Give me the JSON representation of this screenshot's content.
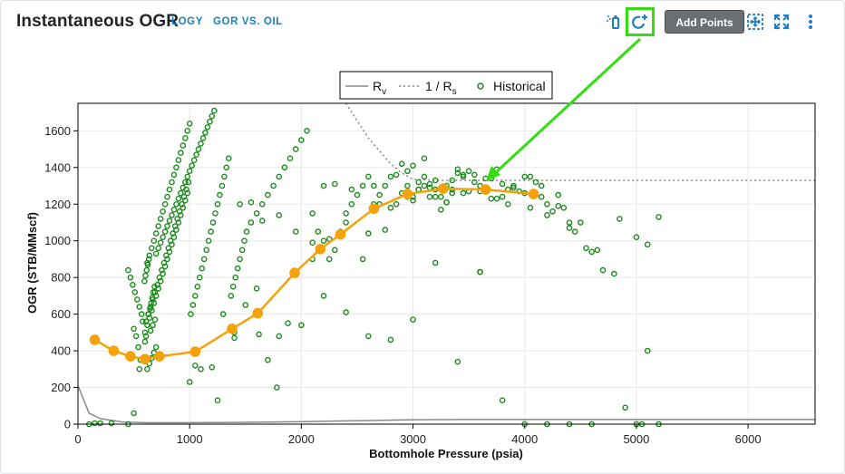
{
  "header": {
    "title": "Instantaneous OGR",
    "chip_logy": "LOGY",
    "chip_gor": "GOR VS. OIL",
    "tooltip": "Add Points",
    "toolbar_icons": [
      "flask-icon",
      "add-refresh-icon",
      "columns-icon",
      "move-icon",
      "expand-icon",
      "more-vert-icon"
    ]
  },
  "colors": {
    "accent": "#1f7fc1",
    "highlight": "#33dd11",
    "historical": "#1a8a1a",
    "fitted": "#f5a20a",
    "rv_line": "#888888"
  },
  "chart_data": {
    "type": "scatter",
    "xlabel": "Bottomhole Pressure (psia)",
    "ylabel": "OGR (STB/MMscf)",
    "xlim": [
      0,
      6600
    ],
    "ylim": [
      0,
      1750
    ],
    "xticks": [
      0,
      1000,
      2000,
      3000,
      4000,
      5000,
      6000
    ],
    "yticks": [
      0,
      200,
      400,
      600,
      800,
      1000,
      1200,
      1400,
      1600
    ],
    "grid": true,
    "legend_position": "top-center",
    "legend": {
      "rv": {
        "base": "R",
        "sub": "v"
      },
      "rs_inv": {
        "base": "1 / R",
        "sub": "s"
      },
      "historical": "Historical"
    },
    "rv_curve": {
      "x": [
        0,
        100,
        200,
        400,
        600,
        1000,
        1500,
        2000,
        2500,
        3000,
        3500,
        4000,
        5000,
        6000,
        6600
      ],
      "y": [
        210,
        60,
        30,
        12,
        8,
        8,
        10,
        14,
        19,
        24,
        25,
        25,
        25,
        25,
        25
      ]
    },
    "inv_rs_curve": {
      "x": [
        2400,
        2600,
        2800,
        2900,
        3000,
        3200,
        3600,
        4500,
        5500,
        6600
      ],
      "y": [
        1750,
        1560,
        1420,
        1370,
        1335,
        1330,
        1330,
        1330,
        1330,
        1330
      ]
    },
    "fitted_series": {
      "x": [
        150,
        320,
        470,
        600,
        730,
        1050,
        1380,
        1610,
        1940,
        2170,
        2350,
        2650,
        2950,
        3270,
        3650,
        4080
      ],
      "y": [
        460,
        400,
        370,
        355,
        370,
        395,
        520,
        605,
        825,
        955,
        1035,
        1175,
        1255,
        1285,
        1280,
        1255
      ]
    },
    "historical": {
      "x": [
        620,
        640,
        660,
        680,
        700,
        600,
        610,
        650,
        670,
        690,
        630,
        645,
        655,
        665,
        675,
        685,
        595,
        605,
        615,
        625,
        635,
        700,
        720,
        740,
        760,
        780,
        800,
        820,
        840,
        860,
        880,
        900,
        920,
        940,
        960,
        980,
        1000,
        1020,
        1040,
        1060,
        1080,
        1100,
        1120,
        1140,
        1160,
        1180,
        1200,
        1220,
        560,
        540,
        520,
        500,
        580,
        570,
        550,
        530,
        510,
        490,
        470,
        450,
        620,
        640,
        660,
        680,
        700,
        720,
        740,
        760,
        780,
        800,
        820,
        840,
        860,
        880,
        900,
        920,
        940,
        960,
        980,
        1000,
        600,
        620,
        640,
        660,
        680,
        700,
        720,
        740,
        760,
        780,
        800,
        820,
        840,
        860,
        880,
        900,
        920,
        940,
        960,
        980,
        610,
        630,
        650,
        670,
        690,
        710,
        730,
        750,
        770,
        790,
        810,
        830,
        850,
        870,
        890,
        910,
        930,
        950,
        970,
        990,
        1010,
        1030,
        1050,
        1070,
        1090,
        1110,
        1130,
        1150,
        1170,
        1190,
        1210,
        1230,
        1250,
        1270,
        1290,
        1310,
        1330,
        1350,
        1370,
        1390,
        1410,
        1430,
        1450,
        1470,
        1490,
        1510,
        1550,
        1600,
        1650,
        1700,
        1750,
        1800,
        1850,
        1900,
        1950,
        2000,
        2050,
        2100,
        2150,
        2200,
        2250,
        2300,
        2350,
        2400,
        2450,
        2500,
        2550,
        2600,
        2650,
        2700,
        2750,
        2800,
        2850,
        2900,
        2950,
        3000,
        3050,
        3100,
        3150,
        3200,
        3250,
        3300,
        3350,
        3400,
        3450,
        3500,
        3550,
        3600,
        3650,
        3700,
        3750,
        3800,
        3850,
        3900,
        3950,
        4000,
        4050,
        4100,
        4150,
        4200,
        4250,
        4300,
        4350,
        4400,
        4450,
        4500,
        4550,
        4600,
        4700,
        4800,
        4900,
        5000,
        5050,
        5100,
        5200,
        1000,
        1100,
        1200,
        1300,
        1400,
        1500,
        1600,
        1700,
        1800,
        2000,
        2200,
        2400,
        2600,
        2800,
        3000,
        3200,
        3400,
        3600,
        3800,
        4000,
        4200,
        4400,
        4600,
        100,
        150,
        200,
        300,
        450,
        500,
        550,
        1050,
        1250,
        1400,
        1620,
        1780,
        1880,
        2100,
        2200,
        2300,
        2450,
        2650,
        3050,
        3200,
        3350,
        3500,
        3650,
        3750,
        3900,
        4150,
        4300,
        2950,
        3000,
        3100,
        3150,
        3250,
        3300,
        3400,
        2900,
        2850,
        3050,
        3200,
        3350,
        3450,
        3550,
        3700,
        3850,
        4050,
        4200,
        4400,
        4650,
        4850,
        5000,
        5100,
        5200,
        2600,
        2700,
        2800,
        3000,
        3150,
        3300,
        3450,
        3600,
        3800,
        4000,
        1450,
        1550,
        1650,
        1800,
        1950,
        2100,
        2250,
        2400,
        2550,
        2750,
        2950,
        3100,
        3600
      ],
      "y": [
        300,
        330,
        360,
        390,
        420,
        450,
        480,
        510,
        540,
        570,
        600,
        630,
        660,
        690,
        720,
        750,
        780,
        810,
        840,
        870,
        900,
        930,
        960,
        990,
        1020,
        1050,
        1080,
        1110,
        1140,
        1170,
        1200,
        1230,
        1260,
        1290,
        1320,
        1350,
        1380,
        1410,
        1440,
        1470,
        1500,
        1530,
        1560,
        1590,
        1620,
        1650,
        1680,
        1710,
        350,
        420,
        480,
        520,
        560,
        600,
        640,
        680,
        720,
        760,
        800,
        840,
        880,
        920,
        960,
        1000,
        1040,
        1080,
        1120,
        1160,
        1200,
        1240,
        1280,
        1320,
        1360,
        1400,
        1440,
        1480,
        1520,
        1560,
        1600,
        1640,
        500,
        540,
        580,
        620,
        660,
        700,
        740,
        780,
        820,
        860,
        900,
        940,
        980,
        1020,
        1060,
        1100,
        1140,
        1180,
        1220,
        1260,
        560,
        600,
        640,
        680,
        720,
        760,
        800,
        840,
        880,
        920,
        960,
        1000,
        1040,
        1080,
        1120,
        1160,
        1200,
        1240,
        1280,
        1320,
        600,
        650,
        700,
        750,
        800,
        850,
        900,
        950,
        1000,
        1050,
        1100,
        1150,
        1200,
        1250,
        1300,
        1350,
        1400,
        1450,
        700,
        750,
        800,
        850,
        900,
        950,
        1000,
        1050,
        1100,
        1150,
        1200,
        1250,
        1300,
        1350,
        1400,
        1450,
        1500,
        1550,
        1600,
        1150,
        1050,
        1000,
        900,
        950,
        1050,
        1100,
        1200,
        1250,
        1300,
        1350,
        1200,
        1250,
        1300,
        1350,
        1200,
        1260,
        1300,
        1240,
        1280,
        1350,
        1310,
        1280,
        1240,
        1300,
        1330,
        1370,
        1360,
        1380,
        1320,
        1300,
        1290,
        1340,
        1390,
        1310,
        1280,
        1300,
        1270,
        1260,
        1350,
        1320,
        1240,
        1200,
        1160,
        1190,
        1180,
        1070,
        1050,
        1100,
        960,
        940,
        840,
        820,
        90,
        0,
        0,
        400,
        0,
        230,
        300,
        310,
        600,
        500,
        650,
        740,
        350,
        480,
        540,
        700,
        610,
        480,
        460,
        570,
        880,
        340,
        830,
        130,
        0,
        0,
        0,
        0,
        0,
        5,
        5,
        5,
        0,
        60,
        300,
        320,
        130,
        470,
        490,
        200,
        550,
        900,
        1300,
        1310,
        1280,
        1300,
        1320,
        1240,
        1260,
        1270,
        1340,
        1230,
        1290,
        1300,
        1250,
        1380,
        1410,
        1300,
        1240,
        1170,
        1210,
        1390,
        1420,
        1360,
        1280,
        1330,
        1280,
        1350,
        1360,
        1230,
        1200,
        1180,
        1140,
        1100,
        950,
        1120,
        1020,
        980,
        1130,
        1040,
        1200,
        1180,
        1220,
        1290,
        1210,
        1260,
        1270,
        1240,
        1350,
        1200,
        1210,
        1110,
        1140,
        1050,
        990,
        1010,
        1150,
        900,
        1060,
        1240,
        1450,
        830
      ]
    }
  }
}
